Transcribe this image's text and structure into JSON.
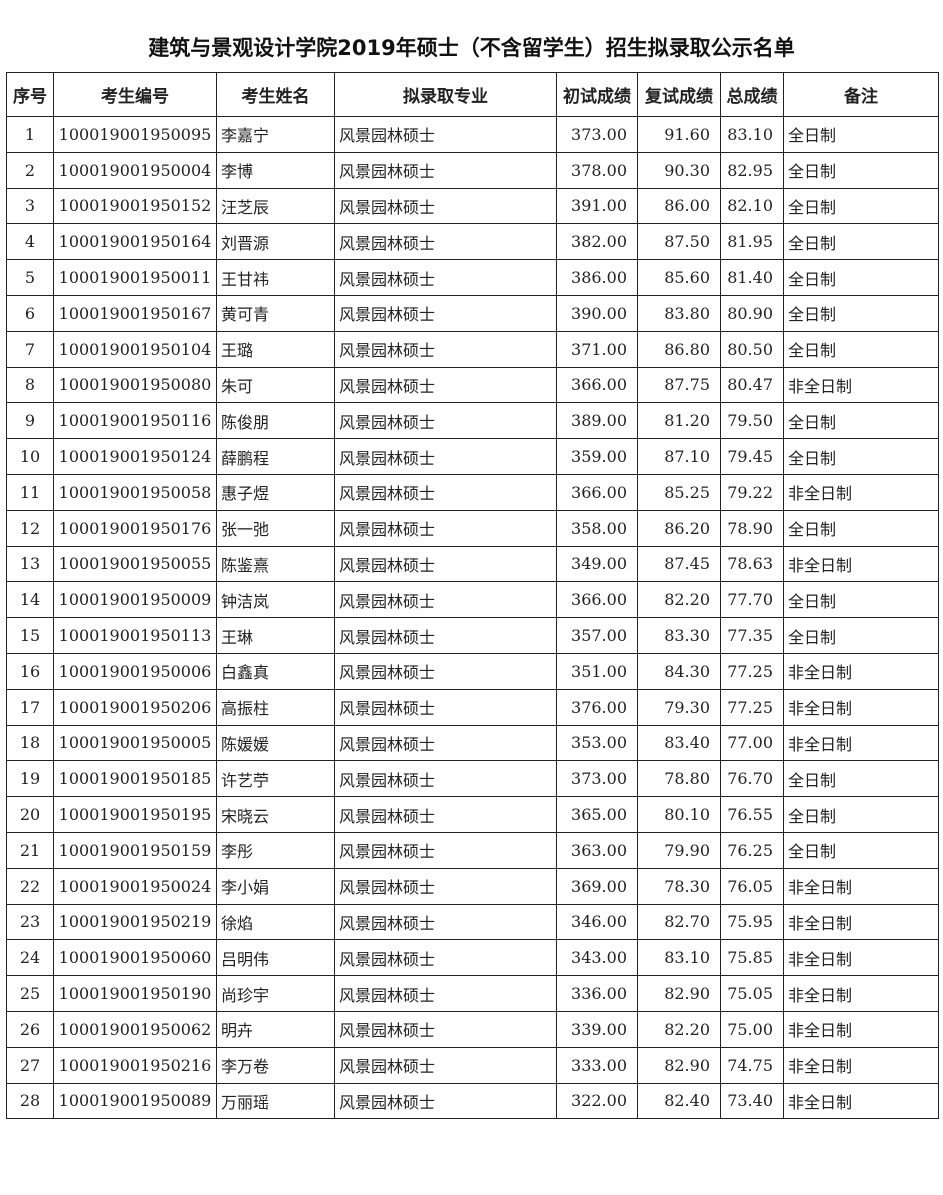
{
  "title": "建筑与景观设计学院2019年硕士（不含留学生）招生拟录取公示名单",
  "headers": [
    "序号",
    "考生编号",
    "考生姓名",
    "拟录取专业",
    "初试成绩",
    "复试成绩",
    "总成绩",
    "备注"
  ],
  "rows": [
    [
      "1",
      "100019001950095",
      "李嘉宁",
      "风景园林硕士",
      "373.00",
      "91.60",
      "83.10",
      "全日制"
    ],
    [
      "2",
      "100019001950004",
      "李博",
      "风景园林硕士",
      "378.00",
      "90.30",
      "82.95",
      "全日制"
    ],
    [
      "3",
      "100019001950152",
      "汪芝辰",
      "风景园林硕士",
      "391.00",
      "86.00",
      "82.10",
      "全日制"
    ],
    [
      "4",
      "100019001950164",
      "刘晋源",
      "风景园林硕士",
      "382.00",
      "87.50",
      "81.95",
      "全日制"
    ],
    [
      "5",
      "100019001950011",
      "王甘祎",
      "风景园林硕士",
      "386.00",
      "85.60",
      "81.40",
      "全日制"
    ],
    [
      "6",
      "100019001950167",
      "黄可青",
      "风景园林硕士",
      "390.00",
      "83.80",
      "80.90",
      "全日制"
    ],
    [
      "7",
      "100019001950104",
      "王璐",
      "风景园林硕士",
      "371.00",
      "86.80",
      "80.50",
      "全日制"
    ],
    [
      "8",
      "100019001950080",
      "朱可",
      "风景园林硕士",
      "366.00",
      "87.75",
      "80.47",
      "非全日制"
    ],
    [
      "9",
      "100019001950116",
      "陈俊朋",
      "风景园林硕士",
      "389.00",
      "81.20",
      "79.50",
      "全日制"
    ],
    [
      "10",
      "100019001950124",
      "薛鹏程",
      "风景园林硕士",
      "359.00",
      "87.10",
      "79.45",
      "全日制"
    ],
    [
      "11",
      "100019001950058",
      "惠子煜",
      "风景园林硕士",
      "366.00",
      "85.25",
      "79.22",
      "非全日制"
    ],
    [
      "12",
      "100019001950176",
      "张一弛",
      "风景园林硕士",
      "358.00",
      "86.20",
      "78.90",
      "全日制"
    ],
    [
      "13",
      "100019001950055",
      "陈鉴熹",
      "风景园林硕士",
      "349.00",
      "87.45",
      "78.63",
      "非全日制"
    ],
    [
      "14",
      "100019001950009",
      "钟洁岚",
      "风景园林硕士",
      "366.00",
      "82.20",
      "77.70",
      "全日制"
    ],
    [
      "15",
      "100019001950113",
      "王琳",
      "风景园林硕士",
      "357.00",
      "83.30",
      "77.35",
      "全日制"
    ],
    [
      "16",
      "100019001950006",
      "白鑫真",
      "风景园林硕士",
      "351.00",
      "84.30",
      "77.25",
      "非全日制"
    ],
    [
      "17",
      "100019001950206",
      "高振柱",
      "风景园林硕士",
      "376.00",
      "79.30",
      "77.25",
      "非全日制"
    ],
    [
      "18",
      "100019001950005",
      "陈媛媛",
      "风景园林硕士",
      "353.00",
      "83.40",
      "77.00",
      "非全日制"
    ],
    [
      "19",
      "100019001950185",
      "许艺苧",
      "风景园林硕士",
      "373.00",
      "78.80",
      "76.70",
      "全日制"
    ],
    [
      "20",
      "100019001950195",
      "宋晓云",
      "风景园林硕士",
      "365.00",
      "80.10",
      "76.55",
      "全日制"
    ],
    [
      "21",
      "100019001950159",
      "李彤",
      "风景园林硕士",
      "363.00",
      "79.90",
      "76.25",
      "全日制"
    ],
    [
      "22",
      "100019001950024",
      "李小娟",
      "风景园林硕士",
      "369.00",
      "78.30",
      "76.05",
      "非全日制"
    ],
    [
      "23",
      "100019001950219",
      "徐焰",
      "风景园林硕士",
      "346.00",
      "82.70",
      "75.95",
      "非全日制"
    ],
    [
      "24",
      "100019001950060",
      "吕明伟",
      "风景园林硕士",
      "343.00",
      "83.10",
      "75.85",
      "非全日制"
    ],
    [
      "25",
      "100019001950190",
      "尚珍宇",
      "风景园林硕士",
      "336.00",
      "82.90",
      "75.05",
      "非全日制"
    ],
    [
      "26",
      "100019001950062",
      "明卉",
      "风景园林硕士",
      "339.00",
      "82.20",
      "75.00",
      "非全日制"
    ],
    [
      "27",
      "100019001950216",
      "李万卷",
      "风景园林硕士",
      "333.00",
      "82.90",
      "74.75",
      "非全日制"
    ],
    [
      "28",
      "100019001950089",
      "万丽瑶",
      "风景园林硕士",
      "322.00",
      "82.40",
      "73.40",
      "非全日制"
    ]
  ]
}
